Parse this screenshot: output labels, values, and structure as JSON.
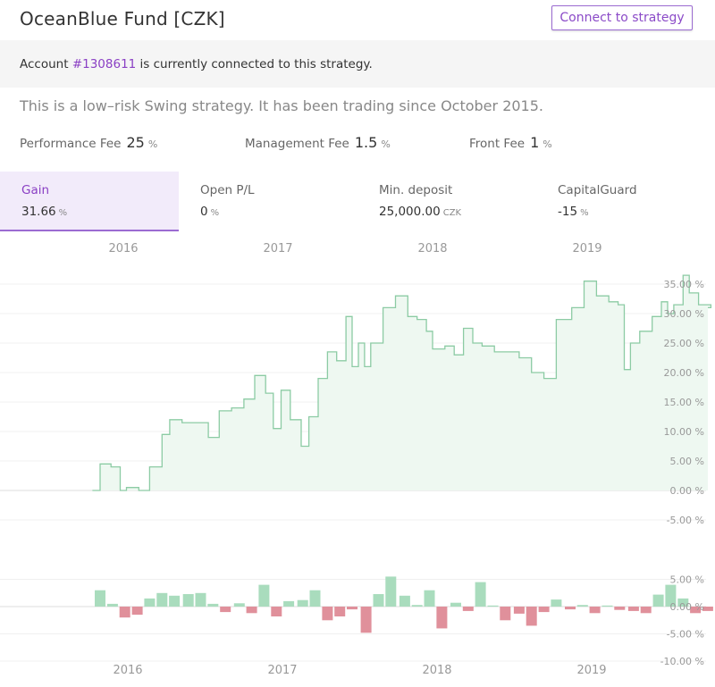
{
  "header": {
    "title": "OceanBlue Fund [CZK]",
    "connect_label": "Connect to strategy"
  },
  "account": {
    "prefix": "Account",
    "id": "#1308611",
    "suffix": "is currently connected to this strategy."
  },
  "description": "This is a low–risk Swing strategy. It has been trading since October 2015.",
  "fees": [
    {
      "label": "Performance Fee",
      "value": "25",
      "unit": "%"
    },
    {
      "label": "Management Fee",
      "value": "1.5",
      "unit": "%"
    },
    {
      "label": "Front Fee",
      "value": "1",
      "unit": "%"
    }
  ],
  "stats": [
    {
      "label": "Gain",
      "value": "31.66",
      "unit": "%",
      "active": true
    },
    {
      "label": "Open P/L",
      "value": "0",
      "unit": "%",
      "active": false
    },
    {
      "label": "Min. deposit",
      "value": "25,000.00",
      "unit": "CZK",
      "active": false
    },
    {
      "label": "CapitalGuard",
      "value": "-15",
      "unit": "%",
      "active": false
    }
  ],
  "colors": {
    "accent": "#8a3fc4",
    "gain_line": "#8ccba4",
    "gain_fill": "#eef8f1",
    "pos_bar": "#a9dcbd",
    "neg_bar": "#e0909b"
  },
  "chart_data": [
    {
      "type": "area",
      "years": [
        "2016",
        "2017",
        "2018",
        "2019"
      ],
      "y_ticks": [
        "35.00 %",
        "30.00 %",
        "25.00 %",
        "20.00 %",
        "15.00 %",
        "10.00 %",
        "5.00 %",
        "0.00 %",
        "-5.00 %"
      ],
      "ylim": [
        -5,
        35
      ],
      "x": [
        2015.8,
        2015.85,
        2015.92,
        2015.98,
        2016.02,
        2016.1,
        2016.17,
        2016.25,
        2016.3,
        2016.38,
        2016.46,
        2016.55,
        2016.62,
        2016.7,
        2016.78,
        2016.85,
        2016.92,
        2016.97,
        2017.02,
        2017.08,
        2017.15,
        2017.2,
        2017.26,
        2017.32,
        2017.38,
        2017.44,
        2017.48,
        2017.52,
        2017.56,
        2017.6,
        2017.68,
        2017.76,
        2017.84,
        2017.9,
        2017.96,
        2018.0,
        2018.08,
        2018.14,
        2018.2,
        2018.26,
        2018.32,
        2018.4,
        2018.48,
        2018.56,
        2018.64,
        2018.72,
        2018.8,
        2018.9,
        2018.98,
        2019.06,
        2019.14,
        2019.2,
        2019.24,
        2019.28,
        2019.34,
        2019.42,
        2019.48,
        2019.52,
        2019.56,
        2019.62,
        2019.66,
        2019.72,
        2019.8
      ],
      "y": [
        0.0,
        4.5,
        4.0,
        0.0,
        0.5,
        0.0,
        4.0,
        9.5,
        12.0,
        11.5,
        11.5,
        9.0,
        13.5,
        14.0,
        15.5,
        19.5,
        16.5,
        10.5,
        17.0,
        12.0,
        7.5,
        12.5,
        19.0,
        23.5,
        22.0,
        29.5,
        21.0,
        25.0,
        21.0,
        25.0,
        31.0,
        33.0,
        29.5,
        29.0,
        27.0,
        24.0,
        24.5,
        23.0,
        27.5,
        25.0,
        24.5,
        23.5,
        23.5,
        22.5,
        20.0,
        19.0,
        29.0,
        31.0,
        35.5,
        33.0,
        32.0,
        31.5,
        20.5,
        25.0,
        27.0,
        29.5,
        32.0,
        30.0,
        31.5,
        36.5,
        33.5,
        31.5,
        31.0
      ],
      "series": [
        {
          "name": "Gain"
        }
      ]
    },
    {
      "type": "bar",
      "years": [
        "2016",
        "2017",
        "2018",
        "2019"
      ],
      "y_ticks": [
        "5.00 %",
        "0.00 %",
        "-5.00 %",
        "-10.00 %"
      ],
      "ylim": [
        -10,
        5
      ],
      "x": [
        2015.85,
        2015.93,
        2016.01,
        2016.09,
        2016.17,
        2016.25,
        2016.33,
        2016.42,
        2016.5,
        2016.58,
        2016.66,
        2016.75,
        2016.83,
        2016.91,
        2016.99,
        2017.07,
        2017.16,
        2017.24,
        2017.32,
        2017.4,
        2017.48,
        2017.57,
        2017.65,
        2017.73,
        2017.82,
        2017.9,
        2017.98,
        2018.06,
        2018.15,
        2018.23,
        2018.31,
        2018.39,
        2018.47,
        2018.56,
        2018.64,
        2018.72,
        2018.8,
        2018.89,
        2018.97,
        2019.05,
        2019.13,
        2019.21,
        2019.3,
        2019.38,
        2019.46,
        2019.54,
        2019.62,
        2019.7,
        2019.78
      ],
      "values": [
        3.0,
        0.5,
        -2.0,
        -1.5,
        1.5,
        2.5,
        2.0,
        2.3,
        2.5,
        0.5,
        -1.0,
        0.6,
        -1.2,
        4.0,
        -1.8,
        1.0,
        1.2,
        3.0,
        -2.5,
        -1.8,
        -0.5,
        -4.8,
        2.3,
        5.5,
        2.0,
        0.3,
        3.0,
        -4.0,
        0.7,
        -0.8,
        4.5,
        0.2,
        -2.5,
        -1.3,
        -3.5,
        -1.0,
        1.3,
        -0.5,
        0.3,
        -1.2,
        0.2,
        -0.6,
        -0.8,
        -1.2,
        2.2,
        4.0,
        1.5,
        -1.2,
        -0.8
      ]
    }
  ]
}
